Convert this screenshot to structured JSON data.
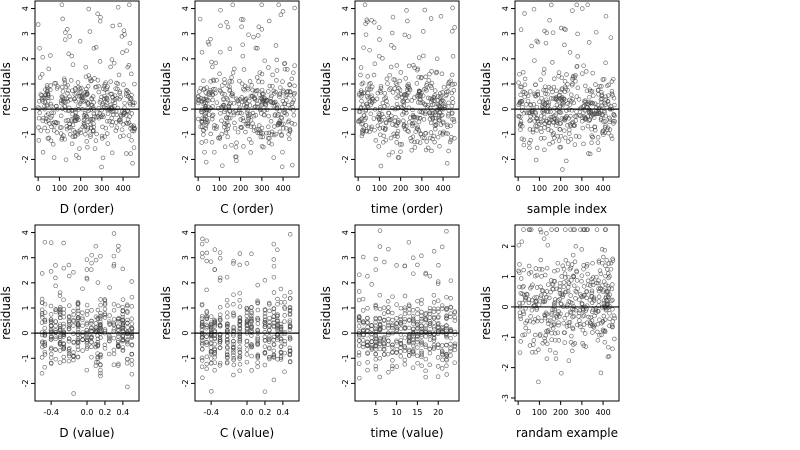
{
  "chart_data": [
    {
      "type": "scatter",
      "xlabel": "D (order)",
      "ylabel": "residuals",
      "xlim": [
        -15,
        475
      ],
      "ylim": [
        -2.7,
        4.3
      ],
      "xticks": [
        0,
        100,
        200,
        300,
        400
      ],
      "xtick_labels": [
        "0",
        "100",
        "200",
        "300",
        "400"
      ],
      "yticks": [
        -2,
        -1,
        0,
        1,
        2,
        3,
        4
      ],
      "ytick_labels": [
        "-2",
        "-1",
        "0",
        "1",
        "2",
        "3",
        "4"
      ],
      "points": {
        "pattern": "index",
        "n": 440,
        "seed": 11,
        "noise": 0.9
      }
    },
    {
      "type": "scatter",
      "xlabel": "C (order)",
      "ylabel": "residuals",
      "xlim": [
        -15,
        475
      ],
      "ylim": [
        -2.7,
        4.3
      ],
      "xticks": [
        0,
        100,
        200,
        300,
        400
      ],
      "xtick_labels": [
        "0",
        "100",
        "200",
        "300",
        "400"
      ],
      "yticks": [
        -2,
        -1,
        0,
        1,
        2,
        3,
        4
      ],
      "ytick_labels": [
        "-2",
        "-1",
        "0",
        "1",
        "2",
        "3",
        "4"
      ],
      "points": {
        "pattern": "index",
        "n": 440,
        "seed": 23,
        "noise": 0.9
      }
    },
    {
      "type": "scatter",
      "xlabel": "time (order)",
      "ylabel": "residuals",
      "xlim": [
        -15,
        475
      ],
      "ylim": [
        -2.7,
        4.3
      ],
      "xticks": [
        0,
        100,
        200,
        300,
        400
      ],
      "xtick_labels": [
        "0",
        "100",
        "200",
        "300",
        "400"
      ],
      "yticks": [
        -2,
        -1,
        0,
        1,
        2,
        3,
        4
      ],
      "ytick_labels": [
        "-2",
        "-1",
        "0",
        "1",
        "2",
        "3",
        "4"
      ],
      "points": {
        "pattern": "index",
        "n": 440,
        "seed": 37,
        "noise": 0.95
      }
    },
    {
      "type": "scatter",
      "xlabel": "sample index",
      "ylabel": "residuals",
      "xlim": [
        -15,
        475
      ],
      "ylim": [
        -2.7,
        4.3
      ],
      "xticks": [
        0,
        100,
        200,
        300,
        400
      ],
      "xtick_labels": [
        "0",
        "100",
        "200",
        "300",
        "400"
      ],
      "yticks": [
        -2,
        -1,
        0,
        1,
        2,
        3,
        4
      ],
      "ytick_labels": [
        "-2",
        "-1",
        "0",
        "1",
        "2",
        "3",
        "4"
      ],
      "points": {
        "pattern": "index",
        "n": 440,
        "seed": 51,
        "noise": 0.9
      }
    },
    {
      "type": "scatter",
      "xlabel": "D (value)",
      "ylabel": "residuals",
      "xlim": [
        -0.58,
        0.58
      ],
      "ylim": [
        -2.7,
        4.3
      ],
      "xticks": [
        -0.4,
        0.0,
        0.2,
        0.4
      ],
      "xtick_labels": [
        "-0.4",
        "0.0",
        "0.2",
        "0.4"
      ],
      "yticks": [
        -2,
        -1,
        0,
        1,
        2,
        3,
        4
      ],
      "ytick_labels": [
        "-2",
        "-1",
        "0",
        "1",
        "2",
        "3",
        "4"
      ],
      "points": {
        "pattern": "columns",
        "n": 440,
        "seed": 61,
        "noise": 0.85,
        "columns": [
          -0.5,
          -0.47,
          -0.4,
          -0.35,
          -0.3,
          -0.26,
          -0.2,
          -0.15,
          -0.1,
          -0.05,
          0.0,
          0.05,
          0.1,
          0.12,
          0.15,
          0.2,
          0.25,
          0.3,
          0.35,
          0.4,
          0.45,
          0.5
        ]
      }
    },
    {
      "type": "scatter",
      "xlabel": "C (value)",
      "ylabel": "residuals",
      "xlim": [
        -0.58,
        0.58
      ],
      "ylim": [
        -2.7,
        4.3
      ],
      "xticks": [
        -0.4,
        0.0,
        0.2,
        0.4
      ],
      "xtick_labels": [
        "-0.4",
        "0.0",
        "0.2",
        "0.4"
      ],
      "yticks": [
        -2,
        -1,
        0,
        1,
        2,
        3,
        4
      ],
      "ytick_labels": [
        "-2",
        "-1",
        "0",
        "1",
        "2",
        "3",
        "4"
      ],
      "points": {
        "pattern": "columns",
        "n": 440,
        "seed": 73,
        "noise": 0.85,
        "columns": [
          -0.5,
          -0.45,
          -0.4,
          -0.36,
          -0.3,
          -0.22,
          -0.15,
          -0.08,
          0.0,
          0.05,
          0.12,
          0.2,
          0.25,
          0.3,
          0.34,
          0.38,
          0.42,
          0.48
        ]
      }
    },
    {
      "type": "scatter",
      "xlabel": "time (value)",
      "ylabel": "residuals",
      "xlim": [
        0,
        25
      ],
      "ylim": [
        -2.7,
        4.3
      ],
      "xticks": [
        5,
        10,
        15,
        20
      ],
      "xtick_labels": [
        "5",
        "10",
        "15",
        "20"
      ],
      "yticks": [
        -2,
        -1,
        0,
        1,
        2,
        3,
        4
      ],
      "ytick_labels": [
        "-2",
        "-1",
        "0",
        "1",
        "2",
        "3",
        "4"
      ],
      "points": {
        "pattern": "columns",
        "n": 440,
        "seed": 89,
        "noise": 0.85,
        "columns": [
          1,
          2,
          3,
          4,
          5,
          6,
          7,
          8,
          9,
          10,
          11,
          12,
          13,
          14,
          15,
          16,
          17,
          18,
          19,
          20,
          21,
          22,
          23,
          24
        ]
      }
    },
    {
      "type": "scatter",
      "xlabel": "randam example",
      "ylabel": "residuals",
      "xlim": [
        -15,
        475
      ],
      "ylim": [
        -3.1,
        2.7
      ],
      "xticks": [
        0,
        100,
        200,
        300,
        400
      ],
      "xtick_labels": [
        "0",
        "100",
        "200",
        "300",
        "400"
      ],
      "yticks": [
        -3,
        -2,
        -1,
        0,
        1,
        2
      ],
      "ytick_labels": [
        "-3",
        "-2",
        "-1",
        "0",
        "1",
        "2"
      ],
      "points": {
        "pattern": "uniform",
        "n": 440,
        "seed": 97,
        "noise": 1.0
      }
    }
  ]
}
